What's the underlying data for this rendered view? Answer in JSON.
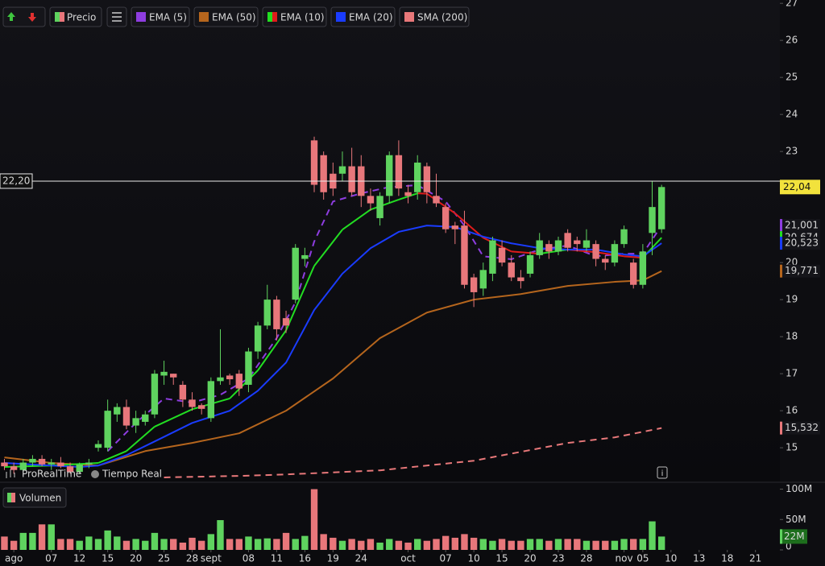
{
  "chart_data": [
    {
      "type": "candlestick",
      "name": "Precio",
      "x": [
        -10,
        -9,
        -8,
        -7,
        -6,
        -5,
        -4,
        -3,
        -2,
        -1,
        0,
        1,
        2,
        3,
        4,
        5,
        6,
        7,
        8,
        9,
        10,
        11,
        12,
        13,
        14,
        15,
        16,
        17,
        18,
        19,
        20,
        21,
        22,
        23,
        24,
        25,
        26,
        27,
        28,
        29,
        30,
        31,
        32,
        33,
        34,
        35,
        36,
        37,
        38,
        39,
        40,
        41,
        42,
        43,
        44,
        45,
        46,
        47,
        48,
        49,
        50,
        51,
        52,
        53,
        54,
        55,
        56,
        57,
        58,
        59,
        60
      ],
      "open": [
        14.6,
        14.5,
        14.4,
        14.6,
        14.7,
        14.55,
        14.6,
        14.5,
        14.35,
        14.55,
        15.0,
        15.0,
        15.9,
        16.1,
        15.6,
        15.7,
        15.9,
        16.95,
        17.0,
        16.7,
        16.3,
        16.15,
        15.8,
        16.8,
        16.95,
        17.0,
        16.7,
        17.6,
        18.3,
        19.0,
        18.5,
        19.0,
        20.1,
        23.3,
        22.9,
        22.4,
        22.4,
        22.6,
        22.6,
        21.8,
        21.2,
        21.8,
        22.9,
        21.9,
        21.9,
        22.6,
        21.8,
        21.5,
        21.0,
        21.0,
        19.6,
        19.3,
        19.7,
        20.4,
        20.0,
        19.6,
        19.7,
        20.2,
        20.5,
        20.3,
        20.8,
        20.6,
        20.4,
        20.5,
        20.1,
        20.0,
        20.5,
        20.0,
        19.4,
        20.8,
        20.9
      ],
      "high": [
        14.7,
        14.6,
        14.7,
        14.8,
        14.8,
        14.7,
        14.75,
        14.6,
        14.6,
        14.7,
        15.2,
        16.3,
        16.2,
        16.3,
        16.0,
        16.0,
        17.1,
        17.35,
        17.0,
        16.8,
        16.5,
        16.2,
        16.9,
        18.2,
        17.0,
        17.1,
        17.7,
        18.4,
        19.4,
        19.1,
        18.7,
        20.5,
        20.4,
        23.4,
        23.0,
        22.7,
        23.0,
        23.1,
        22.9,
        22.0,
        21.9,
        23.0,
        23.3,
        22.1,
        22.9,
        22.7,
        22.4,
        21.6,
        21.1,
        21.4,
        19.7,
        20.0,
        20.7,
        20.6,
        20.2,
        19.8,
        20.3,
        20.8,
        20.6,
        20.7,
        20.9,
        20.7,
        20.9,
        20.6,
        20.2,
        20.6,
        21.0,
        20.1,
        20.5,
        22.2,
        22.1
      ],
      "low": [
        14.4,
        14.3,
        14.35,
        14.5,
        14.5,
        14.4,
        14.45,
        14.3,
        14.3,
        14.45,
        14.9,
        14.9,
        15.7,
        15.5,
        15.4,
        15.6,
        15.8,
        16.7,
        16.7,
        16.1,
        16.0,
        15.9,
        15.7,
        16.7,
        16.7,
        16.4,
        16.5,
        17.4,
        18.2,
        17.9,
        18.1,
        18.9,
        19.9,
        21.9,
        21.7,
        21.8,
        22.2,
        21.8,
        21.5,
        21.4,
        21.0,
        21.6,
        21.8,
        21.6,
        21.7,
        21.6,
        21.5,
        20.8,
        20.5,
        19.3,
        18.8,
        19.1,
        19.5,
        19.9,
        19.5,
        19.3,
        19.6,
        20.1,
        20.1,
        20.2,
        20.3,
        20.3,
        20.3,
        19.9,
        19.8,
        19.9,
        20.4,
        19.3,
        19.3,
        20.2,
        20.8
      ],
      "close": [
        14.5,
        14.4,
        14.6,
        14.7,
        14.55,
        14.6,
        14.5,
        14.35,
        14.55,
        14.6,
        15.1,
        16.0,
        16.1,
        15.6,
        15.8,
        15.9,
        17.0,
        17.05,
        16.9,
        16.3,
        16.1,
        16.05,
        16.8,
        16.9,
        16.85,
        16.6,
        17.6,
        18.3,
        19.0,
        18.2,
        18.3,
        20.4,
        20.2,
        22.1,
        21.9,
        22.0,
        22.6,
        21.9,
        21.8,
        21.6,
        21.8,
        22.9,
        22.0,
        21.8,
        22.7,
        21.9,
        21.6,
        20.9,
        20.9,
        19.4,
        19.2,
        19.8,
        20.6,
        20.0,
        19.6,
        19.5,
        20.2,
        20.6,
        20.3,
        20.6,
        20.4,
        20.5,
        20.6,
        20.1,
        20.0,
        20.5,
        20.9,
        19.4,
        20.3,
        21.5,
        22.04
      ],
      "last_label": "22,04",
      "up_color": "#5fd35f",
      "down_color": "#e8777b",
      "last_color": "#f2e23c",
      "xlim": [
        -10.47,
        72.6
      ],
      "ylim": [
        14.09,
        27.09
      ],
      "yticks": [
        15,
        16,
        17,
        18,
        19,
        20,
        21,
        22,
        23,
        24,
        25,
        26,
        27
      ],
      "xticks": [
        {
          "value": -9,
          "label": "ago"
        },
        {
          "value": -5,
          "label": "07"
        },
        {
          "value": -2,
          "label": "12"
        },
        {
          "value": 1,
          "label": "15"
        },
        {
          "value": 4,
          "label": "20"
        },
        {
          "value": 7,
          "label": "25"
        },
        {
          "value": 10,
          "label": "28"
        },
        {
          "value": 12,
          "label": "sept"
        },
        {
          "value": 16,
          "label": "08"
        },
        {
          "value": 19,
          "label": "11"
        },
        {
          "value": 22,
          "label": "16"
        },
        {
          "value": 25,
          "label": "19"
        },
        {
          "value": 28,
          "label": "24"
        },
        {
          "value": 33,
          "label": "oct"
        },
        {
          "value": 37,
          "label": "07"
        },
        {
          "value": 40,
          "label": "10"
        },
        {
          "value": 43,
          "label": "15"
        },
        {
          "value": 46,
          "label": "20"
        },
        {
          "value": 49,
          "label": "23"
        },
        {
          "value": 52,
          "label": "28"
        },
        {
          "value": 56,
          "label": "nov"
        },
        {
          "value": 58,
          "label": "05"
        },
        {
          "value": 61,
          "label": "10"
        },
        {
          "value": 64,
          "label": "13"
        },
        {
          "value": 67,
          "label": "18"
        },
        {
          "value": 70,
          "label": "21"
        }
      ],
      "hline": {
        "value": 22.2,
        "label": "22,20",
        "color": "#e8e8e8"
      },
      "series": [
        {
          "name": "EMA (5)",
          "color": "#8e3de0",
          "dash": true,
          "x": [
            1,
            4,
            7,
            10,
            13,
            16,
            19,
            21,
            23,
            25,
            28,
            31,
            34,
            37,
            39,
            41,
            44,
            47,
            50,
            53,
            56,
            58,
            60
          ],
          "values": [
            14.91,
            15.67,
            16.33,
            16.22,
            16.43,
            16.87,
            17.96,
            18.93,
            20.57,
            21.65,
            21.87,
            22.04,
            22.09,
            21.65,
            21.0,
            20.17,
            20.09,
            20.35,
            20.46,
            20.17,
            20.24,
            20.24,
            21.001
          ],
          "last_label": "21,001"
        },
        {
          "name": "EMA (50)",
          "color": "#b5651d",
          "dash": false,
          "x": [
            -10,
            -5,
            0,
            5,
            10,
            15,
            20,
            25,
            30,
            35,
            40,
            45,
            50,
            55,
            58,
            60
          ],
          "values": [
            14.74,
            14.59,
            14.52,
            14.91,
            15.13,
            15.39,
            16.0,
            16.87,
            17.96,
            18.65,
            19.0,
            19.15,
            19.37,
            19.48,
            19.52,
            19.771
          ],
          "last_label": "19,771"
        },
        {
          "name": "EMA (10)",
          "color": "#22dd22",
          "down_color": "#e01b1b",
          "dash": false,
          "x": [
            -10,
            -5,
            0,
            3,
            6,
            10,
            14,
            17,
            20,
            23,
            26,
            29,
            32,
            34,
            35,
            38,
            41,
            44,
            47,
            50,
            53,
            56,
            58,
            60
          ],
          "values": [
            14.48,
            14.52,
            14.59,
            14.91,
            15.57,
            16.04,
            16.33,
            17.09,
            18.17,
            19.91,
            20.89,
            21.43,
            21.7,
            21.87,
            21.86,
            21.33,
            20.67,
            20.3,
            20.24,
            20.35,
            20.28,
            20.17,
            20.13,
            20.674
          ],
          "last_label": "20,674"
        },
        {
          "name": "EMA (20)",
          "color": "#1a3cff",
          "dash": false,
          "x": [
            -10,
            -5,
            -2,
            0,
            3,
            6,
            10,
            14,
            17,
            20,
            23,
            26,
            29,
            32,
            35,
            38,
            41,
            44,
            47,
            50,
            53,
            56,
            58,
            60
          ],
          "values": [
            14.59,
            14.52,
            14.48,
            14.52,
            14.8,
            15.17,
            15.67,
            16.0,
            16.54,
            17.3,
            18.72,
            19.7,
            20.39,
            20.83,
            21.0,
            20.96,
            20.7,
            20.52,
            20.39,
            20.35,
            20.35,
            20.22,
            20.17,
            20.523
          ],
          "last_label": "20,523"
        },
        {
          "name": "SMA (200)",
          "color": "#e8787a",
          "dash": true,
          "x": [
            7,
            15,
            20,
            30,
            40,
            50,
            55,
            60
          ],
          "values": [
            14.2,
            14.24,
            14.28,
            14.39,
            14.65,
            15.13,
            15.28,
            15.532
          ],
          "last_label": "15,532"
        }
      ]
    },
    {
      "type": "bar",
      "title": "Volumen",
      "values": [
        22,
        15,
        28,
        28,
        42,
        42,
        18,
        18,
        15,
        22,
        18,
        32,
        22,
        15,
        18,
        15,
        28,
        18,
        18,
        12,
        20,
        15,
        26,
        49,
        18,
        18,
        22,
        18,
        19,
        18,
        28,
        18,
        23,
        100,
        26,
        20,
        15,
        18,
        15,
        18,
        12,
        18,
        15,
        12,
        18,
        15,
        18,
        23,
        20,
        26,
        20,
        18,
        15,
        18,
        15,
        15,
        18,
        18,
        15,
        18,
        18,
        18,
        15,
        15,
        15,
        15,
        18,
        18,
        18,
        47,
        22
      ],
      "last_label": "22M",
      "ylim": [
        0,
        110
      ],
      "yticks": [
        0,
        {
          "value": 50,
          "label": "50M"
        },
        {
          "value": 100,
          "label": "100M"
        }
      ]
    }
  ],
  "watermark": {
    "brand": "ProRealTime",
    "mode": "Tiempo Real"
  }
}
